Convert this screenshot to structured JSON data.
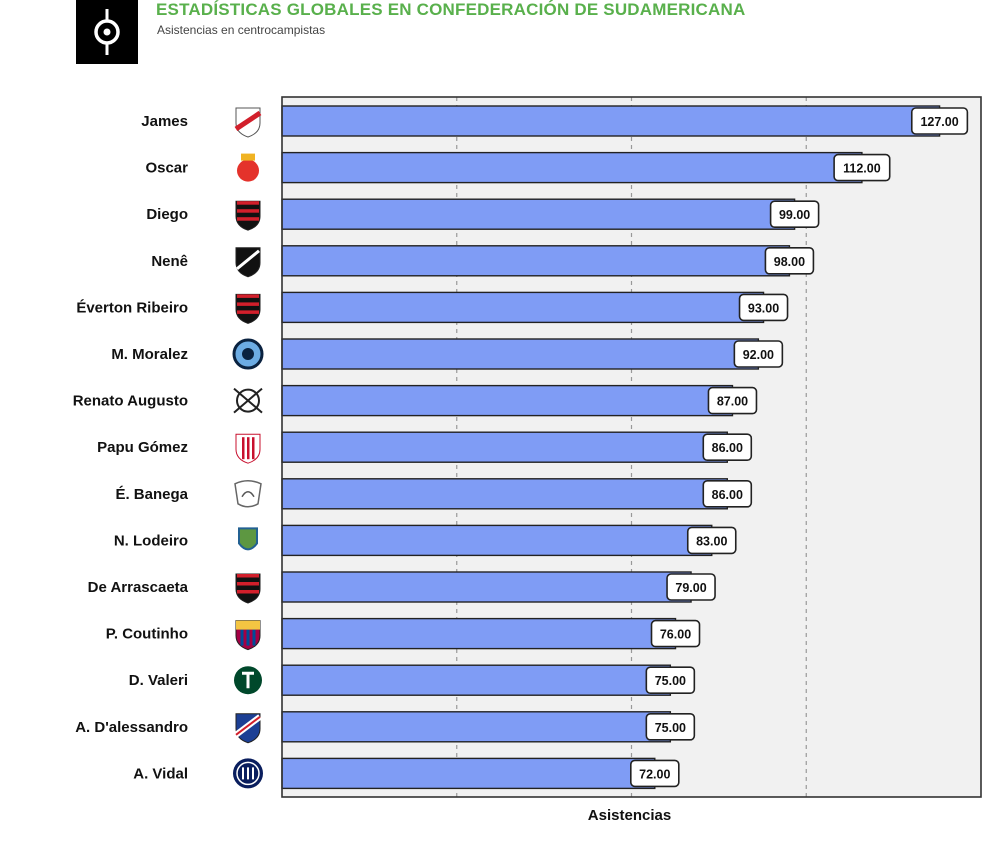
{
  "header": {
    "title": "ESTADÍSTICAS GLOBALES EN CONFEDERACIÓN DE SUDAMERICANA",
    "subtitle": "Asistencias en centrocampistas"
  },
  "chart_data": {
    "type": "bar",
    "orientation": "horizontal",
    "title": "ESTADÍSTICAS GLOBALES EN CONFEDERACIÓN DE SUDAMERICANA",
    "subtitle": "Asistencias en centrocampistas",
    "xlabel": "Asistencias",
    "ylabel": "",
    "xlim": [
      0,
      135
    ],
    "grid": true,
    "bar_color": "#7f9cf5",
    "categories": [
      "James",
      "Oscar",
      "Diego",
      "Nenê",
      "Éverton Ribeiro",
      "M. Moralez",
      "Renato Augusto",
      "Papu Gómez",
      "É. Banega",
      "N. Lodeiro",
      "De Arrascaeta",
      "P. Coutinho",
      "D. Valeri",
      "A. D'alessandro",
      "A. Vidal"
    ],
    "values": [
      127,
      112,
      99,
      98,
      93,
      92,
      87,
      86,
      86,
      83,
      79,
      76,
      75,
      75,
      72
    ],
    "value_labels": [
      "127.00",
      "112.00",
      "99.00",
      "98.00",
      "93.00",
      "92.00",
      "87.00",
      "86.00",
      "86.00",
      "83.00",
      "79.00",
      "76.00",
      "75.00",
      "75.00",
      "72.00"
    ],
    "team_icons": [
      "river-plate-crest-icon",
      "shanghai-sipg-crest-icon",
      "flamengo-crest-icon",
      "vasco-crest-icon",
      "flamengo-crest-icon",
      "nycfc-crest-icon",
      "corinthians-crest-icon",
      "sevilla-crest-icon",
      "al-shabab-crest-icon",
      "seattle-sounders-crest-icon",
      "flamengo-crest-icon",
      "barcelona-crest-icon",
      "portland-timbers-crest-icon",
      "nacional-crest-icon",
      "inter-crest-icon"
    ]
  }
}
